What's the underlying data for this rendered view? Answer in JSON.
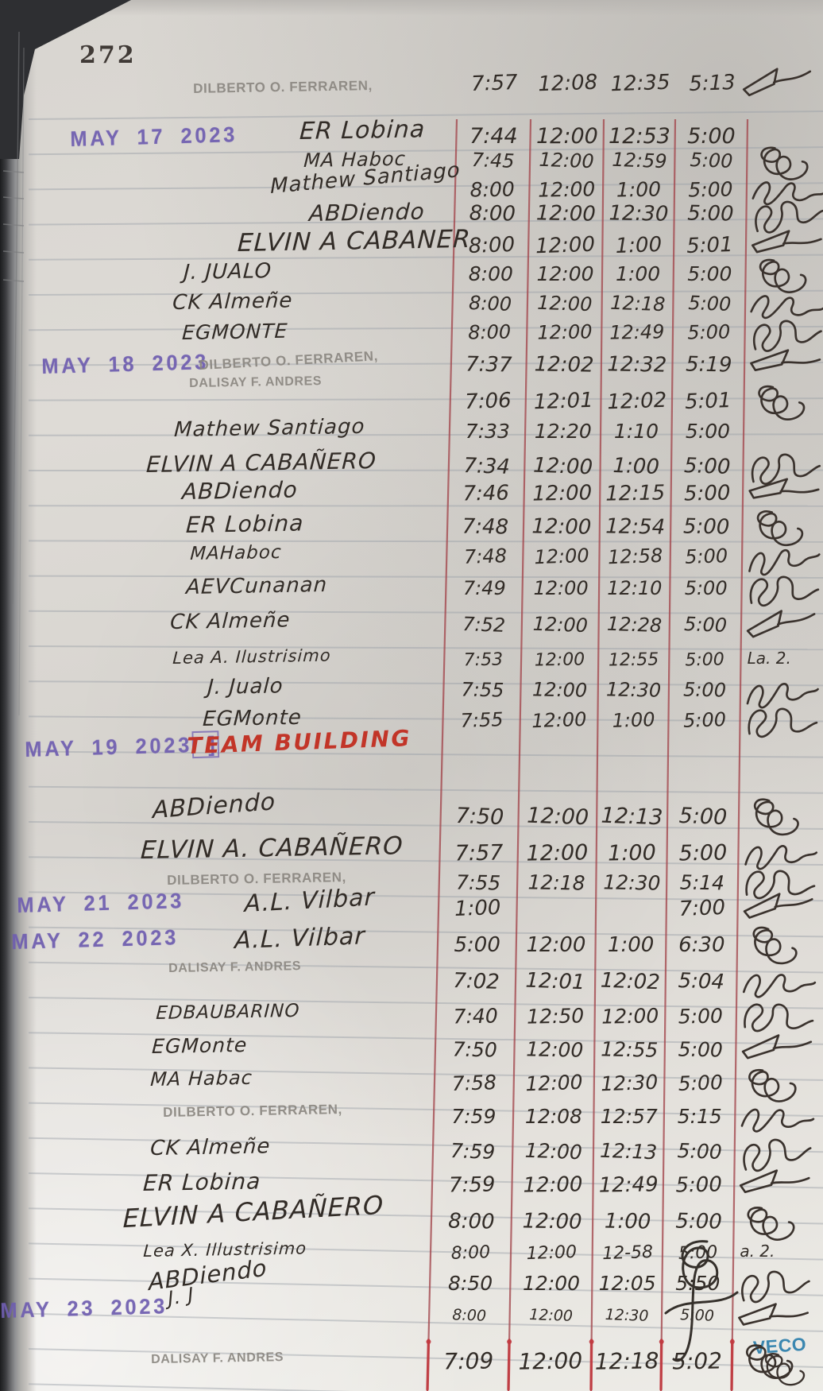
{
  "page": {
    "number": "272",
    "watermark": "VECO"
  },
  "entries": [
    {
      "name": "DILBERTO O. FERRAREN,",
      "stamped": true,
      "times": [
        "7:57",
        "12:08",
        "12:35",
        "5:13"
      ],
      "signature": true
    },
    {
      "date": "MAY 17 2023",
      "name": "ER Lobina",
      "times": [
        "7:44",
        "12:00",
        "12:53",
        "5:00"
      ],
      "signature": false
    },
    {
      "name": "MA Haboc",
      "times": [
        "7:45",
        "12:00",
        "12:59",
        "5:00"
      ],
      "signature": true
    },
    {
      "name": "Mathew Santiago",
      "times": [
        "8:00",
        "12:00",
        "1:00",
        "5:00"
      ],
      "signature": true
    },
    {
      "name": "ABDiendo",
      "times": [
        "8:00",
        "12:00",
        "12:30",
        "5:00"
      ],
      "signature": true
    },
    {
      "name": "ELVIN A CABANER",
      "times": [
        "8:00",
        "12:00",
        "1:00",
        "5:01"
      ],
      "signature": true
    },
    {
      "name": "J. JUALO",
      "times": [
        "8:00",
        "12:00",
        "1:00",
        "5:00"
      ],
      "signature": true
    },
    {
      "name": "CK Almeñe",
      "times": [
        "8:00",
        "12:00",
        "12:18",
        "5:00"
      ],
      "signature": true
    },
    {
      "name": "EGMONTE",
      "times": [
        "8:00",
        "12:00",
        "12:49",
        "5:00"
      ],
      "signature": true
    },
    {
      "date": "MAY 18 2023",
      "name": "DILBERTO O. FERRAREN,",
      "stamped": true,
      "times": [
        "7:37",
        "12:02",
        "12:32",
        "5:19"
      ],
      "signature": true
    },
    {
      "name": "DALISAY F. ANDRES",
      "stamped": true,
      "times": [
        "7:06",
        "12:01",
        "12:02",
        "5:01"
      ],
      "signature": true
    },
    {
      "name": "Mathew Santiago",
      "times": [
        "7:33",
        "12:20",
        "1:10",
        "5:00"
      ],
      "signature": false
    },
    {
      "name": "ELVIN A CABAÑERO",
      "times": [
        "7:34",
        "12:00",
        "1:00",
        "5:00"
      ],
      "signature": true
    },
    {
      "name": "ABDiendo",
      "times": [
        "7:46",
        "12:00",
        "12:15",
        "5:00"
      ],
      "signature": true
    },
    {
      "name": "ER Lobina",
      "times": [
        "7:48",
        "12:00",
        "12:54",
        "5:00"
      ],
      "signature": true
    },
    {
      "name": "MAHaboc",
      "times": [
        "7:48",
        "12:00",
        "12:58",
        "5:00"
      ],
      "signature": true
    },
    {
      "name": "AEVCunanan",
      "times": [
        "7:49",
        "12:00",
        "12:10",
        "5:00"
      ],
      "signature": true
    },
    {
      "name": "CK Almeñe",
      "times": [
        "7:52",
        "12:00",
        "12:28",
        "5:00"
      ],
      "signature": true
    },
    {
      "name": "Lea A. Ilustrisimo",
      "times": [
        "7:53",
        "12:00",
        "12:55",
        "5:00"
      ],
      "signature": true,
      "signature_text": "La. 2."
    },
    {
      "name": "J. Jualo",
      "times": [
        "7:55",
        "12:00",
        "12:30",
        "5:00"
      ],
      "signature": true
    },
    {
      "name": "EGMonte",
      "times": [
        "7:55",
        "12:00",
        "1:00",
        "5:00"
      ],
      "signature": true
    },
    {
      "date": "MAY 19 2023",
      "date_mark": "]",
      "note": "TEAM BUILDING"
    },
    {
      "name": "ABDiendo",
      "times": [
        "7:50",
        "12:00",
        "12:13",
        "5:00"
      ],
      "signature": true
    },
    {
      "name": "ELVIN A. CABAÑERO",
      "times": [
        "7:57",
        "12:00",
        "1:00",
        "5:00"
      ],
      "signature": true
    },
    {
      "name": "DILBERTO O. FERRAREN,",
      "stamped": true,
      "times": [
        "7:55",
        "12:18",
        "12:30",
        "5:14"
      ],
      "signature": true
    },
    {
      "date": "MAY 21 2023",
      "name": "A.L. Vilbar",
      "times": [
        "1:00",
        "",
        "",
        "7:00"
      ],
      "signature": true
    },
    {
      "date": "MAY 22 2023",
      "name": "A.L. Vilbar",
      "times": [
        "5:00",
        "12:00",
        "1:00",
        "6:30"
      ],
      "signature": true
    },
    {
      "name": "DALISAY F. ANDRES",
      "stamped": true,
      "times": [
        "7:02",
        "12:01",
        "12:02",
        "5:04"
      ],
      "signature": true
    },
    {
      "name": "EDBAUBARINO",
      "times": [
        "7:40",
        "12:50",
        "12:00",
        "5:00"
      ],
      "signature": true
    },
    {
      "name": "EGMonte",
      "times": [
        "7:50",
        "12:00",
        "12:55",
        "5:00"
      ],
      "signature": true
    },
    {
      "name": "MA Habac",
      "times": [
        "7:58",
        "12:00",
        "12:30",
        "5:00"
      ],
      "signature": true
    },
    {
      "name": "DILBERTO O. FERRAREN,",
      "stamped": true,
      "times": [
        "7:59",
        "12:08",
        "12:57",
        "5:15"
      ],
      "signature": true
    },
    {
      "name": "CK Almeñe",
      "times": [
        "7:59",
        "12:00",
        "12:13",
        "5:00"
      ],
      "signature": true
    },
    {
      "name": "ER Lobina",
      "times": [
        "7:59",
        "12:00",
        "12:49",
        "5:00"
      ],
      "signature": true
    },
    {
      "name": "ELVIN A CABAÑERO",
      "times": [
        "8:00",
        "12:00",
        "1:00",
        "5:00"
      ],
      "signature": true
    },
    {
      "name": "Lea X. Illustrisimo",
      "times": [
        "8:00",
        "12:00",
        "12-58",
        "5:00"
      ],
      "signature": true,
      "signature_text": "a. 2."
    },
    {
      "name": "ABDiendo",
      "times": [
        "8:50",
        "12:00",
        "12:05",
        "5:50"
      ],
      "signature": true
    },
    {
      "date": "MAY 23 2023",
      "name": "J. J",
      "times": [
        "8:00",
        "12:00",
        "12:30",
        "5:00"
      ],
      "signature": true
    },
    {
      "name": "DALISAY F. ANDRES",
      "stamped": true,
      "times": [
        "7:09",
        "12:00",
        "12:18",
        "5:02"
      ],
      "signature": true
    }
  ]
}
